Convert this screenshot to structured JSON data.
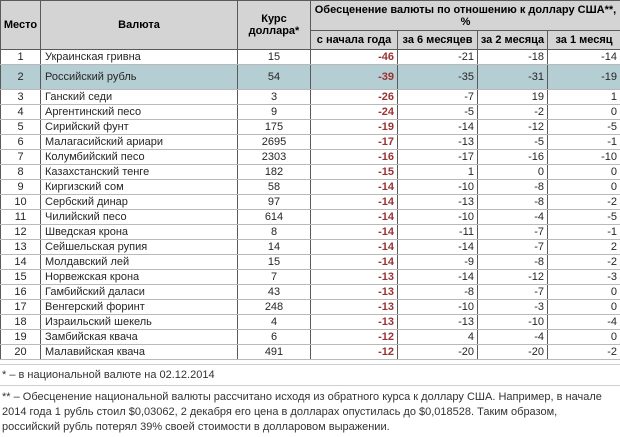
{
  "colors": {
    "header_bg": "#d4d4d4",
    "highlight_row_bg": "#b5ced3",
    "ytd_negative_text": "#993333",
    "grid_vertical": "#5a5a5a",
    "grid_horizontal": "#b9b9b9"
  },
  "table": {
    "header": {
      "place": "Место",
      "currency": "Валюта",
      "rate": "Курс доллара*",
      "group": "Обесценение валюты по отношению к доллару США**, %",
      "sub_ytd": "с начала года",
      "sub_m6": "за 6 месяцев",
      "sub_m2": "за 2 месяца",
      "sub_m1": "за 1 месяц"
    },
    "highlighted_row": "2"
  },
  "chart_data": {
    "type": "table",
    "title": "Обесценение валюты по отношению к доллару США, %",
    "columns": [
      "Место",
      "Валюта",
      "Курс доллара*",
      "с начала года",
      "за 6 месяцев",
      "за 2 месяца",
      "за 1 месяц"
    ],
    "rows": [
      {
        "place": "1",
        "currency": "Украинская гривна",
        "rate": "15",
        "ytd": "-46",
        "m6": "-21",
        "m2": "-18",
        "m1": "-14"
      },
      {
        "place": "2",
        "currency": "Российский рубль",
        "rate": "54",
        "ytd": "-39",
        "m6": "-35",
        "m2": "-31",
        "m1": "-19"
      },
      {
        "place": "3",
        "currency": "Ганский седи",
        "rate": "3",
        "ytd": "-26",
        "m6": "-7",
        "m2": "19",
        "m1": "1"
      },
      {
        "place": "4",
        "currency": "Аргентинский песо",
        "rate": "9",
        "ytd": "-24",
        "m6": "-5",
        "m2": "-2",
        "m1": "0"
      },
      {
        "place": "5",
        "currency": "Сирийский фунт",
        "rate": "175",
        "ytd": "-19",
        "m6": "-14",
        "m2": "-12",
        "m1": "-5"
      },
      {
        "place": "6",
        "currency": "Малагасийский ариари",
        "rate": "2695",
        "ytd": "-17",
        "m6": "-13",
        "m2": "-5",
        "m1": "-1"
      },
      {
        "place": "7",
        "currency": "Колумбийский песо",
        "rate": "2303",
        "ytd": "-16",
        "m6": "-17",
        "m2": "-16",
        "m1": "-10"
      },
      {
        "place": "8",
        "currency": "Казахстанский тенге",
        "rate": "182",
        "ytd": "-15",
        "m6": "1",
        "m2": "0",
        "m1": "0"
      },
      {
        "place": "9",
        "currency": "Киргизский сом",
        "rate": "58",
        "ytd": "-14",
        "m6": "-10",
        "m2": "-8",
        "m1": "0"
      },
      {
        "place": "10",
        "currency": "Сербский динар",
        "rate": "97",
        "ytd": "-14",
        "m6": "-13",
        "m2": "-8",
        "m1": "-2"
      },
      {
        "place": "11",
        "currency": "Чилийский песо",
        "rate": "614",
        "ytd": "-14",
        "m6": "-10",
        "m2": "-4",
        "m1": "-5"
      },
      {
        "place": "12",
        "currency": "Шведская крона",
        "rate": "8",
        "ytd": "-14",
        "m6": "-11",
        "m2": "-7",
        "m1": "-1"
      },
      {
        "place": "13",
        "currency": "Сейшельская рупия",
        "rate": "14",
        "ytd": "-14",
        "m6": "-14",
        "m2": "-7",
        "m1": "2"
      },
      {
        "place": "14",
        "currency": "Молдавский лей",
        "rate": "15",
        "ytd": "-14",
        "m6": "-9",
        "m2": "-8",
        "m1": "-2"
      },
      {
        "place": "15",
        "currency": "Норвежская крона",
        "rate": "7",
        "ytd": "-13",
        "m6": "-14",
        "m2": "-12",
        "m1": "-3"
      },
      {
        "place": "16",
        "currency": "Гамбийский даласи",
        "rate": "43",
        "ytd": "-13",
        "m6": "-8",
        "m2": "-7",
        "m1": "0"
      },
      {
        "place": "17",
        "currency": "Венгерский форинт",
        "rate": "248",
        "ytd": "-13",
        "m6": "-10",
        "m2": "-3",
        "m1": "0"
      },
      {
        "place": "18",
        "currency": "Израильский шекель",
        "rate": "4",
        "ytd": "-13",
        "m6": "-13",
        "m2": "-10",
        "m1": "-4"
      },
      {
        "place": "19",
        "currency": "Замбийская квача",
        "rate": "6",
        "ytd": "-12",
        "m6": "4",
        "m2": "-4",
        "m1": "0"
      },
      {
        "place": "20",
        "currency": "Малавийская квача",
        "rate": "491",
        "ytd": "-12",
        "m6": "-20",
        "m2": "-20",
        "m1": "-2"
      }
    ]
  },
  "footnotes": {
    "first": "* – в национальной валюте на 02.12.2014",
    "second": "** – Обесценение национальной валюты рассчитано исходя из обратного курса к доллару США. Например, в начале 2014 года 1 рубль стоил $0,03062, 2 декабря его цена в долларах опустилась до $0,018528. Таким образом, российский рубль потерял 39% своей стоимости в долларовом выражении."
  }
}
